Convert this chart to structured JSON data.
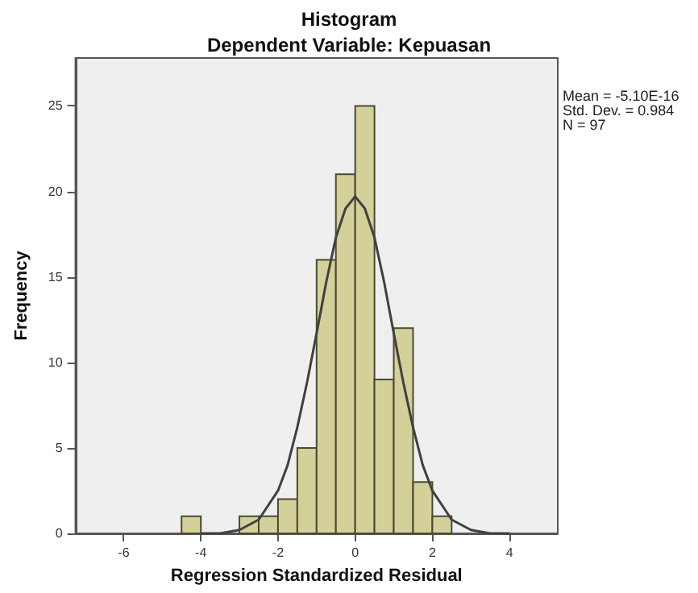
{
  "chart_data": {
    "type": "histogram",
    "title": "Histogram",
    "subtitle": "Dependent Variable: Kepuasan",
    "xlabel": "Regression Standardized Residual",
    "ylabel": "Frequency",
    "annotations": [
      "Mean = -5.10E-16",
      "Std. Dev. = 0.984",
      "N = 97"
    ],
    "bins": [
      -4.5,
      -4,
      -3.5,
      -3,
      -2.5,
      -2,
      -1.5,
      -1,
      -0.5,
      0,
      0.5,
      1,
      1.5,
      2,
      2.5
    ],
    "values": [
      1,
      0,
      0,
      1,
      1,
      2,
      5,
      16,
      21,
      25,
      9,
      12,
      3,
      1
    ],
    "color": "#d4d09a",
    "series": [
      {
        "type": "line",
        "color": "#404040",
        "x": [
          -4,
          -3.5,
          -3,
          -2.5,
          -2,
          -1.75,
          -1.5,
          -1.25,
          -1,
          -0.75,
          -0.5,
          -0.25,
          0,
          0.25,
          0.5,
          0.75,
          1,
          1.25,
          1.5,
          1.75,
          2,
          2.5,
          3,
          3.5,
          4
        ],
        "values": [
          0,
          0,
          0.2,
          0.8,
          2.5,
          4,
          6.2,
          8.8,
          11.7,
          14.7,
          17.3,
          19,
          19.7,
          19,
          17.3,
          14.7,
          11.7,
          8.8,
          6.2,
          4,
          2.5,
          0.8,
          0.2,
          0,
          0
        ]
      }
    ],
    "xlim": [
      -7.25,
      5.25
    ],
    "xticks": [
      -6,
      -4,
      -2,
      0,
      2,
      4
    ],
    "ylim": [
      0,
      27.8
    ],
    "yticks": [
      0,
      5,
      10,
      15,
      20,
      25
    ],
    "grid": false,
    "marker": "none",
    "line_style": "solid"
  }
}
